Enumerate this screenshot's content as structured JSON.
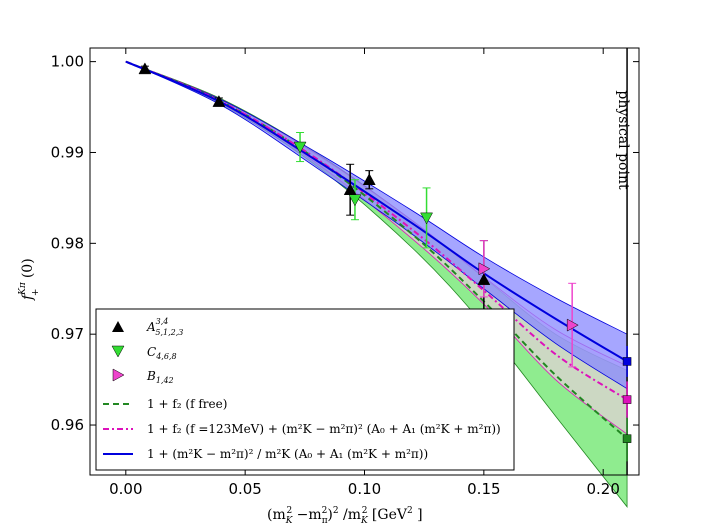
{
  "chart_data": {
    "type": "scatter",
    "xlabel": "(m_K^2 − m_π^2)^2 / m_K^2 [GeV^2]",
    "xlabel_parts": {
      "a": "(m",
      "b": "K",
      "c": "2",
      "d": " −m",
      "e": "π",
      "f": "2",
      "g": ")",
      "h": "2",
      "i": " /m",
      "j": "K",
      "k": "2",
      "l": " [GeV",
      "m": "2",
      "n": " ]"
    },
    "ylabel": "f_+^{Kπ}(0)",
    "ylabel_parts": {
      "a": "f",
      "b": "Kπ",
      "c": "+",
      "d": " (0)"
    },
    "xlim": [
      -0.015,
      0.215
    ],
    "ylim": [
      0.9545,
      1.0015
    ],
    "xticks": [
      0.0,
      0.05,
      0.1,
      0.15,
      0.2
    ],
    "xtick_labels": [
      "0.00",
      "0.05",
      "0.10",
      "0.15",
      "0.20"
    ],
    "yticks": [
      0.96,
      0.97,
      0.98,
      0.99,
      1.0
    ],
    "ytick_labels": [
      "0.96",
      "0.97",
      "0.98",
      "0.99",
      "1.00"
    ],
    "physical_point": {
      "x": 0.21,
      "label": "physical point"
    },
    "series": [
      {
        "name": "A_{5,1,2,3}^{3,4}",
        "legend_parts": {
          "a": "A",
          "b": "3,4",
          "c": "5,1,2,3"
        },
        "marker": "triangle-up",
        "color": "#000000",
        "points": [
          {
            "x": 0.008,
            "y": 0.9992,
            "err": 0.0003
          },
          {
            "x": 0.039,
            "y": 0.9956,
            "err": 0.0004
          },
          {
            "x": 0.094,
            "y": 0.9859,
            "err": 0.0028
          },
          {
            "x": 0.102,
            "y": 0.987,
            "err": 0.001
          },
          {
            "x": 0.15,
            "y": 0.976,
            "err": 0.0043
          }
        ]
      },
      {
        "name": "C_{4,6,8}",
        "legend_parts": {
          "a": "C",
          "b": "4,6,8"
        },
        "marker": "triangle-down",
        "color": "#33dd33",
        "points": [
          {
            "x": 0.073,
            "y": 0.9906,
            "err": 0.0016
          },
          {
            "x": 0.096,
            "y": 0.9848,
            "err": 0.0022
          },
          {
            "x": 0.126,
            "y": 0.9828,
            "err": 0.0033
          }
        ]
      },
      {
        "name": "B_{1,42}",
        "legend_parts": {
          "a": "B",
          "b": "1,42"
        },
        "marker": "triangle-right",
        "color": "#ee44cc",
        "points": [
          {
            "x": 0.15,
            "y": 0.9772,
            "err": 0.0031
          },
          {
            "x": 0.187,
            "y": 0.971,
            "err": 0.0046
          }
        ]
      }
    ],
    "fits": [
      {
        "name": "1+f_2(f free)",
        "legend_text": "1 + f₂ (f free)",
        "style": "dashed",
        "color": "#228822",
        "band_color": "#33dd33",
        "x": [
          0.0,
          0.04,
          0.08,
          0.12,
          0.15,
          0.18,
          0.21
        ],
        "y": [
          1.0,
          0.9956,
          0.9892,
          0.981,
          0.9736,
          0.9655,
          0.9585
        ],
        "band_lo": [
          1.0,
          0.9953,
          0.9885,
          0.9795,
          0.971,
          0.961,
          0.951
        ],
        "band_hi": [
          1.0,
          0.9959,
          0.9899,
          0.9825,
          0.9762,
          0.97,
          0.966
        ],
        "end_value": 0.9585,
        "end_err": 0.0025
      },
      {
        "name": "1+f_2(f=123MeV)+(m_K^2-m_π^2)^2(A_0+A_1(m_K^2+m_π^2))",
        "legend_text": "1 + f₂ (f =123MeV) + (m²K − m²π)² (A₀ + A₁ (m²K + m²π))",
        "style": "dashdot",
        "color": "#dd11bb",
        "band_color": "#ffc8ee",
        "x": [
          0.0,
          0.04,
          0.08,
          0.12,
          0.15,
          0.18,
          0.21
        ],
        "y": [
          1.0,
          0.9956,
          0.9893,
          0.9815,
          0.9748,
          0.9678,
          0.9628
        ],
        "band_lo": [
          1.0,
          0.9954,
          0.9888,
          0.9805,
          0.9733,
          0.965,
          0.959
        ],
        "band_hi": [
          1.0,
          0.9958,
          0.9898,
          0.9825,
          0.9763,
          0.9705,
          0.9665
        ],
        "end_value": 0.9628,
        "end_err": 0.002
      },
      {
        "name": "1+(m_K^2-m_π^2)^2/m_K^2(A_0+A_1(m_K^2+m_π^2))",
        "legend_text": "1 + (m²K − m²π)² / m²K (A₀ + A₁ (m²K + m²π))",
        "style": "solid",
        "color": "#0000dd",
        "band_color": "#8888ff",
        "x": [
          0.0,
          0.04,
          0.08,
          0.12,
          0.15,
          0.18,
          0.21
        ],
        "y": [
          1.0,
          0.9955,
          0.9891,
          0.9822,
          0.9767,
          0.9717,
          0.967
        ],
        "band_lo": [
          1.0,
          0.9952,
          0.9883,
          0.981,
          0.975,
          0.969,
          0.964
        ],
        "band_hi": [
          1.0,
          0.9958,
          0.99,
          0.9836,
          0.9785,
          0.974,
          0.97
        ],
        "end_value": 0.967,
        "end_err": 0.0017
      }
    ]
  }
}
